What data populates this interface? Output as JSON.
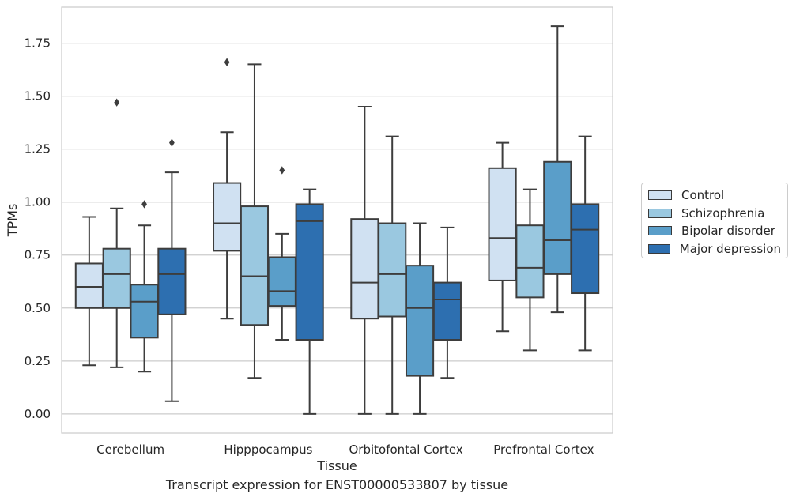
{
  "caption": "Transcript expression for ENST00000533807 by tissue",
  "chart_data": {
    "type": "box",
    "xlabel": "Tissue",
    "ylabel": "TPMs",
    "ylim": [
      -0.09,
      1.92
    ],
    "yticks": [
      0.0,
      0.25,
      0.5,
      0.75,
      1.0,
      1.25,
      1.5,
      1.75
    ],
    "ytick_labels": [
      "0.00",
      "0.25",
      "0.50",
      "0.75",
      "1.00",
      "1.25",
      "1.50",
      "1.75"
    ],
    "grid": "horizontal",
    "legend_position": "right-outside",
    "categories": [
      "Cerebellum",
      "Hipppocampus",
      "Orbitofontal Cortex",
      "Prefrontal Cortex"
    ],
    "series": [
      {
        "name": "Control",
        "color": "#d0e1f2",
        "boxes": [
          {
            "whislo": 0.23,
            "q1": 0.5,
            "med": 0.6,
            "q3": 0.71,
            "whishi": 0.93,
            "fliers": []
          },
          {
            "whislo": 0.45,
            "q1": 0.77,
            "med": 0.9,
            "q3": 1.09,
            "whishi": 1.33,
            "fliers": [
              1.66
            ]
          },
          {
            "whislo": 0.0,
            "q1": 0.45,
            "med": 0.62,
            "q3": 0.92,
            "whishi": 1.45,
            "fliers": []
          },
          {
            "whislo": 0.39,
            "q1": 0.63,
            "med": 0.83,
            "q3": 1.16,
            "whishi": 1.28,
            "fliers": []
          }
        ]
      },
      {
        "name": "Schizophrenia",
        "color": "#9ac8e0",
        "boxes": [
          {
            "whislo": 0.22,
            "q1": 0.5,
            "med": 0.66,
            "q3": 0.78,
            "whishi": 0.97,
            "fliers": [
              1.47
            ]
          },
          {
            "whislo": 0.17,
            "q1": 0.42,
            "med": 0.65,
            "q3": 0.98,
            "whishi": 1.65,
            "fliers": []
          },
          {
            "whislo": 0.0,
            "q1": 0.46,
            "med": 0.66,
            "q3": 0.9,
            "whishi": 1.31,
            "fliers": []
          },
          {
            "whislo": 0.3,
            "q1": 0.55,
            "med": 0.69,
            "q3": 0.89,
            "whishi": 1.06,
            "fliers": []
          }
        ]
      },
      {
        "name": "Bipolar disorder",
        "color": "#5a9ec9",
        "boxes": [
          {
            "whislo": 0.2,
            "q1": 0.36,
            "med": 0.53,
            "q3": 0.61,
            "whishi": 0.89,
            "fliers": [
              0.99
            ]
          },
          {
            "whislo": 0.35,
            "q1": 0.51,
            "med": 0.58,
            "q3": 0.74,
            "whishi": 0.85,
            "fliers": [
              1.15
            ]
          },
          {
            "whislo": 0.0,
            "q1": 0.18,
            "med": 0.5,
            "q3": 0.7,
            "whishi": 0.9,
            "fliers": []
          },
          {
            "whislo": 0.48,
            "q1": 0.66,
            "med": 0.82,
            "q3": 1.19,
            "whishi": 1.83,
            "fliers": []
          }
        ]
      },
      {
        "name": "Major depression",
        "color": "#2d6fb0",
        "boxes": [
          {
            "whislo": 0.06,
            "q1": 0.47,
            "med": 0.66,
            "q3": 0.78,
            "whishi": 1.14,
            "fliers": [
              1.28
            ]
          },
          {
            "whislo": 0.0,
            "q1": 0.35,
            "med": 0.91,
            "q3": 0.99,
            "whishi": 1.06,
            "fliers": []
          },
          {
            "whislo": 0.17,
            "q1": 0.35,
            "med": 0.54,
            "q3": 0.62,
            "whishi": 0.88,
            "fliers": []
          },
          {
            "whislo": 0.3,
            "q1": 0.57,
            "med": 0.87,
            "q3": 0.99,
            "whishi": 1.31,
            "fliers": []
          }
        ]
      }
    ]
  }
}
